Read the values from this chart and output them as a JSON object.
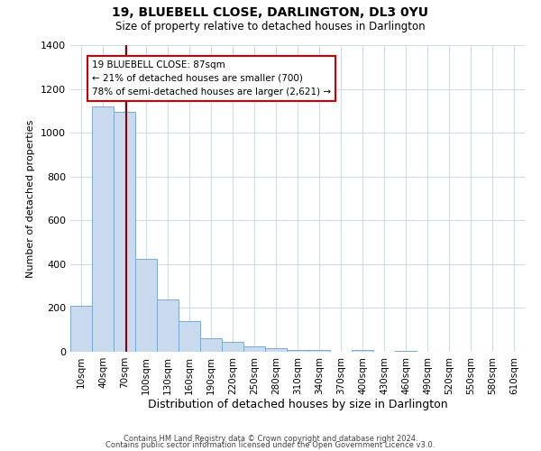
{
  "title": "19, BLUEBELL CLOSE, DARLINGTON, DL3 0YU",
  "subtitle": "Size of property relative to detached houses in Darlington",
  "xlabel": "Distribution of detached houses by size in Darlington",
  "ylabel": "Number of detached properties",
  "bar_labels": [
    "10sqm",
    "40sqm",
    "70sqm",
    "100sqm",
    "130sqm",
    "160sqm",
    "190sqm",
    "220sqm",
    "250sqm",
    "280sqm",
    "310sqm",
    "340sqm",
    "370sqm",
    "400sqm",
    "430sqm",
    "460sqm",
    "490sqm",
    "520sqm",
    "550sqm",
    "580sqm",
    "610sqm"
  ],
  "bar_values": [
    210,
    1120,
    1095,
    425,
    240,
    140,
    60,
    45,
    25,
    15,
    10,
    10,
    0,
    8,
    0,
    5,
    0,
    0,
    0,
    0,
    0
  ],
  "bar_color": "#c9d9ee",
  "bar_edge_color": "#7aaad0",
  "grid_color": "#d0dde8",
  "background_color": "#ffffff",
  "property_line_color": "#8b0000",
  "annotation_text": "19 BLUEBELL CLOSE: 87sqm\n← 21% of detached houses are smaller (700)\n78% of semi-detached houses are larger (2,621) →",
  "annotation_box_color": "#ffffff",
  "annotation_box_edge_color": "#cc0000",
  "ylim": [
    0,
    1400
  ],
  "yticks": [
    0,
    200,
    400,
    600,
    800,
    1000,
    1200,
    1400
  ],
  "footer_line1": "Contains HM Land Registry data © Crown copyright and database right 2024.",
  "footer_line2": "Contains public sector information licensed under the Open Government Licence v3.0."
}
